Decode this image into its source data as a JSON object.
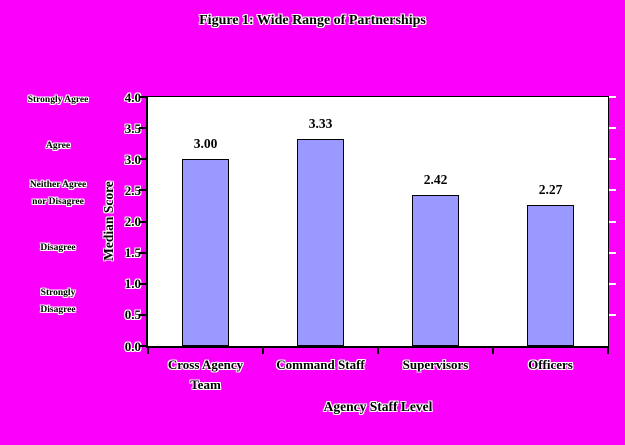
{
  "chart_data": {
    "type": "bar",
    "title": "Figure 1: Wide Range of Partnerships",
    "xlabel": "Agency Staff Level",
    "ylabel": "Median Score",
    "categories": [
      "Cross Agency Team",
      "Command Staff",
      "Supervisors",
      "Officers"
    ],
    "category_lines": [
      [
        "Cross Agency",
        "Team"
      ],
      [
        "Command Staff"
      ],
      [
        "Supervisors"
      ],
      [
        "Officers"
      ]
    ],
    "values": [
      3.0,
      3.33,
      2.42,
      2.27
    ],
    "value_labels": [
      "3.00",
      "3.33",
      "2.42",
      "2.27"
    ],
    "ylim": [
      0,
      4
    ],
    "ytick_step": 0.5,
    "ytick_labels": [
      "4.0",
      "3.5",
      "3.0",
      "2.5",
      "2.0",
      "1.5",
      "1.0",
      "0.5",
      "0.0"
    ],
    "grid": false,
    "legend": "none",
    "data_labels": true,
    "scale_annotations": [
      {
        "lines": [
          "Strongly Agree"
        ],
        "at_value": 3.94
      },
      {
        "lines": [
          "Agree"
        ],
        "at_value": 3.2
      },
      {
        "lines": [
          "Neither Agree",
          "nor Disagree"
        ],
        "at_value": 2.44
      },
      {
        "lines": [
          "Disagree"
        ],
        "at_value": 1.56
      },
      {
        "lines": [
          "Strongly",
          "Disagree"
        ],
        "at_value": 0.71
      }
    ],
    "colors": {
      "figure_background": "#FB00FB",
      "plot_background": "#FFFFFF",
      "bar_fill": "#9999FF",
      "bar_border": "#000000",
      "text": "#000000",
      "right_tick_color": "#FFFFFF"
    }
  }
}
